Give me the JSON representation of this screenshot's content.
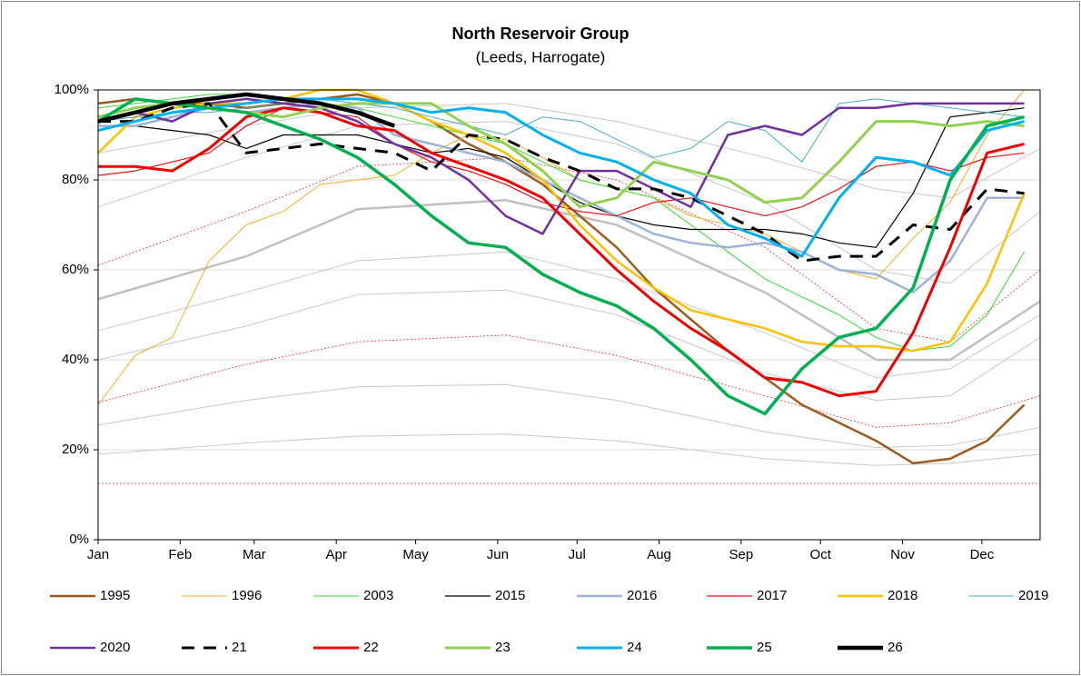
{
  "chart_data": {
    "type": "line",
    "title": "North Reservoir Group",
    "subtitle": "(Leeds, Harrogate)",
    "x": [
      0,
      14,
      28,
      42,
      56,
      70,
      84,
      98,
      112,
      126,
      140,
      154,
      168,
      182,
      196,
      210,
      224,
      238,
      252,
      266,
      280,
      294,
      308,
      322,
      336,
      350
    ],
    "xlim": [
      0,
      356
    ],
    "xticks": [
      {
        "value": 0,
        "label": "Jan"
      },
      {
        "value": 31,
        "label": "Feb"
      },
      {
        "value": 59,
        "label": "Mar"
      },
      {
        "value": 90,
        "label": "Apr"
      },
      {
        "value": 120,
        "label": "May"
      },
      {
        "value": 151,
        "label": "Jun"
      },
      {
        "value": 181,
        "label": "Jul"
      },
      {
        "value": 212,
        "label": "Aug"
      },
      {
        "value": 243,
        "label": "Sep"
      },
      {
        "value": 273,
        "label": "Oct"
      },
      {
        "value": 304,
        "label": "Nov"
      },
      {
        "value": 334,
        "label": "Dec"
      }
    ],
    "ylim": [
      0,
      100
    ],
    "yticks": [
      {
        "value": 0,
        "label": "0%"
      },
      {
        "value": 20,
        "label": "20%"
      },
      {
        "value": 40,
        "label": "40%"
      },
      {
        "value": 60,
        "label": "60%"
      },
      {
        "value": 80,
        "label": "80%"
      },
      {
        "value": 100,
        "label": "100%"
      }
    ],
    "grid": true,
    "legend": "bottom",
    "reference_x": [
      0,
      56,
      98,
      154,
      196,
      252,
      294,
      322,
      356
    ],
    "reference_lines": [
      {
        "color": "#c8c8c8",
        "width": 1,
        "dash": false,
        "values": [
          19,
          21.5,
          23,
          23.5,
          22,
          18,
          16.5,
          17,
          19
        ]
      },
      {
        "color": "#c8c8c8",
        "width": 1,
        "dash": false,
        "values": [
          25.5,
          31,
          34,
          34.5,
          31,
          24,
          20.5,
          21,
          25
        ]
      },
      {
        "color": "#e03030",
        "width": 0.8,
        "dash": true,
        "values": [
          30.5,
          39,
          44,
          45.5,
          41,
          32,
          25,
          26,
          32
        ]
      },
      {
        "color": "#c8c8c8",
        "width": 1,
        "dash": false,
        "values": [
          40,
          47.5,
          54.5,
          55.5,
          50,
          37,
          31,
          32,
          45
        ]
      },
      {
        "color": "#c8c8c8",
        "width": 1,
        "dash": false,
        "values": [
          46.5,
          55,
          62,
          64,
          58,
          46,
          36,
          38,
          50
        ]
      },
      {
        "color": "#c0c0c0",
        "width": 2.5,
        "dash": false,
        "values": [
          53.5,
          63,
          73.5,
          75.5,
          70,
          55,
          40,
          40,
          53
        ]
      },
      {
        "color": "#e03030",
        "width": 0.8,
        "dash": true,
        "values": [
          61,
          73,
          83,
          85,
          80,
          65,
          47,
          44,
          60
        ]
      },
      {
        "color": "#c8c8c8",
        "width": 1,
        "dash": false,
        "values": [
          74,
          85,
          92,
          93,
          88,
          75,
          60,
          57,
          73
        ]
      },
      {
        "color": "#c8c8c8",
        "width": 1,
        "dash": false,
        "values": [
          86,
          92,
          96,
          97,
          93,
          85,
          78,
          76,
          87
        ]
      },
      {
        "color": "#e03030",
        "width": 0.8,
        "dash": true,
        "values": [
          12.5,
          12.5,
          12.5,
          12.5,
          12.5,
          12.5,
          12.5,
          12.5,
          12.5
        ]
      }
    ],
    "series": [
      {
        "name": "1995",
        "color": "#9c5a1e",
        "width": 2.5,
        "dash": false,
        "values": [
          97,
          98,
          97,
          97,
          96,
          97,
          98,
          99,
          97,
          93,
          88,
          84,
          79,
          72,
          65,
          56,
          49,
          42,
          36,
          30,
          26,
          22,
          17,
          18,
          22,
          30
        ]
      },
      {
        "name": "1996",
        "color": "#f0b020",
        "width": 1,
        "dash": false,
        "values": [
          30,
          41,
          45,
          62,
          70,
          73,
          79,
          80,
          81,
          86,
          90,
          89,
          85,
          80,
          78,
          76,
          72,
          70,
          68,
          64,
          60,
          58,
          67,
          75,
          90,
          100
        ]
      },
      {
        "name": "2003",
        "color": "#33dd33",
        "width": 1,
        "dash": false,
        "values": [
          96,
          97,
          98,
          99,
          99,
          98,
          97,
          96,
          94,
          92,
          90,
          88,
          84,
          80,
          78,
          76,
          70,
          64,
          58,
          54,
          50,
          45,
          42,
          43,
          50,
          64
        ]
      },
      {
        "name": "2015",
        "color": "#000000",
        "width": 1.2,
        "dash": false,
        "values": [
          92,
          92,
          91,
          90,
          87,
          90,
          90,
          90,
          88,
          86,
          87,
          85,
          80,
          75,
          72,
          70,
          69,
          69,
          69,
          68,
          66,
          65,
          77,
          94,
          95,
          96
        ]
      },
      {
        "name": "2016",
        "color": "#9db3d6",
        "width": 2.5,
        "dash": false,
        "values": [
          92,
          92,
          94,
          96,
          95,
          96,
          97,
          96,
          90,
          88,
          86,
          84,
          80,
          76,
          72,
          68,
          66,
          65,
          66,
          64,
          60,
          59,
          55,
          62,
          76,
          76
        ]
      },
      {
        "name": "2017",
        "color": "#ee1111",
        "width": 1.2,
        "dash": false,
        "values": [
          81,
          82,
          84,
          86,
          92,
          96,
          95,
          94,
          88,
          84,
          82,
          79,
          75,
          73,
          72,
          75,
          76,
          74,
          72,
          74,
          78,
          83,
          84,
          82,
          85,
          86
        ]
      },
      {
        "name": "2018",
        "color": "#ffc000",
        "width": 2.5,
        "dash": false,
        "values": [
          86,
          94,
          96,
          97,
          97,
          98,
          100,
          100,
          97,
          93,
          90,
          86,
          80,
          70,
          62,
          56,
          51,
          49,
          47,
          44,
          43,
          43,
          42,
          44,
          57,
          77
        ]
      },
      {
        "name": "2019",
        "color": "#4aacc6",
        "width": 1,
        "dash": false,
        "values": [
          93,
          94,
          95,
          95,
          96,
          97,
          98,
          97,
          96,
          94,
          92,
          90,
          94,
          93,
          89,
          85,
          87,
          93,
          91,
          84,
          97,
          98,
          97,
          96,
          95,
          94
        ]
      },
      {
        "name": "2020",
        "color": "#7030a0",
        "width": 2.5,
        "dash": false,
        "values": [
          93,
          95,
          93,
          97,
          98,
          97,
          96,
          93,
          88,
          85,
          80,
          72,
          68,
          82,
          82,
          78,
          74,
          90,
          92,
          90,
          96,
          96,
          97,
          97,
          97,
          97
        ]
      },
      {
        "name": "21",
        "color": "#000000",
        "width": 3,
        "dash": true,
        "values": [
          93,
          93,
          96,
          97,
          86,
          87,
          88,
          87,
          86,
          82,
          90,
          89,
          85,
          82,
          78,
          78,
          76,
          72,
          68,
          62,
          63,
          63,
          70,
          69,
          78,
          77
        ]
      },
      {
        "name": "22",
        "color": "#ee0000",
        "width": 3,
        "dash": false,
        "values": [
          83,
          83,
          82,
          87,
          94,
          96,
          95,
          92,
          91,
          86,
          83,
          80,
          76,
          68,
          60,
          53,
          47,
          42,
          36,
          35,
          32,
          33,
          46,
          65,
          86,
          88
        ]
      },
      {
        "name": "23",
        "color": "#92d050",
        "width": 3,
        "dash": false,
        "values": [
          94,
          96,
          97,
          96,
          95,
          94,
          96,
          97,
          97,
          97,
          92,
          88,
          82,
          74,
          76,
          84,
          82,
          80,
          75,
          76,
          84,
          93,
          93,
          92,
          93,
          92
        ]
      },
      {
        "name": "24",
        "color": "#00b0f0",
        "width": 3,
        "dash": false,
        "values": [
          91,
          93,
          95,
          96,
          97,
          98,
          98,
          98,
          97,
          95,
          96,
          95,
          90,
          86,
          84,
          80,
          77,
          70,
          67,
          63,
          76,
          85,
          84,
          81,
          91,
          93
        ]
      },
      {
        "name": "25",
        "color": "#00b050",
        "width": 3.5,
        "dash": false,
        "values": [
          93,
          98,
          97,
          96,
          95,
          92,
          89,
          85,
          79,
          72,
          66,
          65,
          59,
          55,
          52,
          47,
          40,
          32,
          28,
          38,
          45,
          47,
          56,
          80,
          92,
          94
        ]
      },
      {
        "name": "26",
        "color": "#000000",
        "width": 4.5,
        "dash": false,
        "values": [
          93,
          95,
          97,
          98,
          99,
          98,
          97,
          95,
          92,
          null,
          null,
          null,
          null,
          null,
          null,
          null,
          null,
          null,
          null,
          null,
          null,
          null,
          null,
          null,
          null,
          null
        ]
      }
    ]
  }
}
